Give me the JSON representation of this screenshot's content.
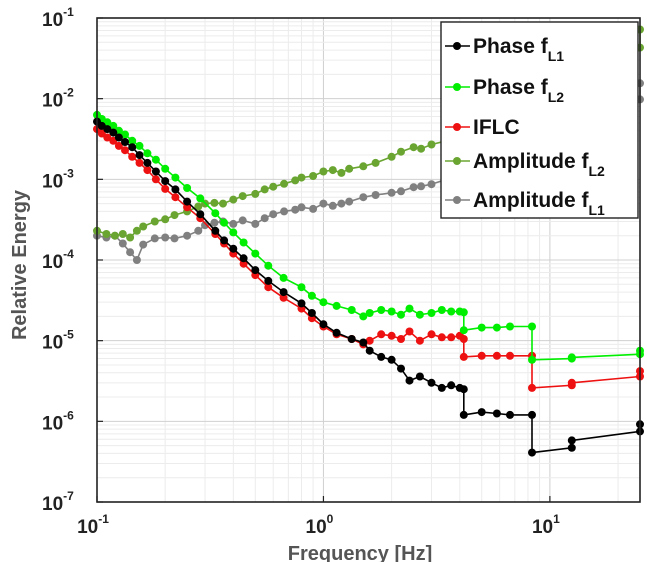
{
  "chart_data": {
    "type": "line",
    "xscale": "log",
    "yscale": "log",
    "xlim": [
      0.1,
      25
    ],
    "ylim": [
      1e-07,
      0.1
    ],
    "xlabel": "Frequency [Hz]",
    "ylabel": "Relative Energy",
    "grid": true,
    "legend_position": "top-right",
    "x_ticks": [
      {
        "base": "10",
        "exp": "-1",
        "value": 0.1
      },
      {
        "base": "10",
        "exp": "0",
        "value": 1
      },
      {
        "base": "10",
        "exp": "1",
        "value": 10
      }
    ],
    "y_ticks": [
      {
        "base": "10",
        "exp": "-7",
        "value": 1e-07
      },
      {
        "base": "10",
        "exp": "-6",
        "value": 1e-06
      },
      {
        "base": "10",
        "exp": "-5",
        "value": 1e-05
      },
      {
        "base": "10",
        "exp": "-4",
        "value": 0.0001
      },
      {
        "base": "10",
        "exp": "-3",
        "value": 0.001
      },
      {
        "base": "10",
        "exp": "-2",
        "value": 0.01
      },
      {
        "base": "10",
        "exp": "-1",
        "value": 0.1
      }
    ],
    "series": [
      {
        "name": "Phase f",
        "sub": "L1",
        "color": "#000000",
        "x": [
          0.1,
          0.105,
          0.111,
          0.118,
          0.125,
          0.133,
          0.143,
          0.154,
          0.167,
          0.182,
          0.2,
          0.222,
          0.25,
          0.286,
          0.333,
          0.364,
          0.4,
          0.444,
          0.5,
          0.571,
          0.667,
          0.8,
          0.889,
          1.0,
          1.143,
          1.333,
          1.5,
          1.6,
          1.8,
          2.0,
          2.2,
          2.4,
          2.667,
          3.0,
          3.333,
          3.667,
          4.0,
          4.167,
          4.167,
          5.0,
          5.833,
          6.667,
          8.333,
          8.333,
          12.5,
          12.5,
          25,
          25
        ],
        "y": [
          0.0052,
          0.0046,
          0.0042,
          0.0038,
          0.0033,
          0.0029,
          0.0025,
          0.002,
          0.0016,
          0.00125,
          0.00095,
          0.00075,
          0.00053,
          0.00037,
          0.00023,
          0.000175,
          0.000138,
          0.000105,
          7.5e-05,
          5.5e-05,
          4e-05,
          2.9e-05,
          2.2e-05,
          1.6e-05,
          1.25e-05,
          1.05e-05,
          9.5e-06,
          7.5e-06,
          6.3e-06,
          5.8e-06,
          4.5e-06,
          3.2e-06,
          3.6e-06,
          3e-06,
          2.6e-06,
          2.8e-06,
          2.6e-06,
          2.5e-06,
          1.2e-06,
          1.3e-06,
          1.25e-06,
          1.2e-06,
          1.2e-06,
          4.1e-07,
          4.7e-07,
          5.8e-07,
          7.5e-07,
          9.2e-07
        ]
      },
      {
        "name": "Phase f",
        "sub": "L2",
        "color": "#00ee00",
        "x": [
          0.1,
          0.105,
          0.111,
          0.118,
          0.125,
          0.133,
          0.143,
          0.154,
          0.167,
          0.182,
          0.2,
          0.222,
          0.25,
          0.286,
          0.333,
          0.364,
          0.4,
          0.444,
          0.5,
          0.571,
          0.667,
          0.8,
          0.889,
          1.0,
          1.143,
          1.333,
          1.5,
          1.6,
          1.8,
          2.0,
          2.2,
          2.4,
          2.667,
          3.0,
          3.333,
          3.667,
          4.0,
          4.167,
          4.167,
          5.0,
          5.833,
          6.667,
          8.333,
          8.333,
          12.5,
          12.5,
          25,
          25
        ],
        "y": [
          0.0063,
          0.0056,
          0.0051,
          0.0046,
          0.004,
          0.0036,
          0.003,
          0.0026,
          0.0021,
          0.00175,
          0.00135,
          0.00105,
          0.00078,
          0.00058,
          0.00038,
          0.00029,
          0.00022,
          0.000165,
          0.00012,
          8.5e-05,
          6e-05,
          4.6e-05,
          3.6e-05,
          3e-05,
          2.7e-05,
          2.4e-05,
          2e-05,
          2.2e-05,
          2.4e-05,
          2.3e-05,
          2.1e-05,
          2.5e-05,
          2.1e-05,
          2.2e-05,
          2.4e-05,
          2.3e-05,
          2.3e-05,
          2.25e-05,
          1.35e-05,
          1.45e-05,
          1.45e-05,
          1.5e-05,
          1.5e-05,
          5.8e-06,
          6e-06,
          6.2e-06,
          6.8e-06,
          7.5e-06
        ]
      },
      {
        "name": "IFLC",
        "sub": "",
        "color": "#ee1111",
        "x": [
          0.1,
          0.105,
          0.111,
          0.118,
          0.125,
          0.133,
          0.143,
          0.154,
          0.167,
          0.182,
          0.2,
          0.222,
          0.25,
          0.286,
          0.333,
          0.364,
          0.4,
          0.444,
          0.5,
          0.571,
          0.667,
          0.8,
          0.889,
          1.0,
          1.143,
          1.333,
          1.5,
          1.6,
          1.8,
          2.0,
          2.2,
          2.4,
          2.667,
          3.0,
          3.333,
          3.667,
          4.0,
          4.167,
          4.167,
          5.0,
          5.833,
          6.667,
          8.333,
          8.333,
          12.5,
          12.5,
          25,
          25
        ],
        "y": [
          0.0042,
          0.0037,
          0.0033,
          0.003,
          0.0026,
          0.0023,
          0.0019,
          0.0016,
          0.0013,
          0.001,
          0.00076,
          0.0006,
          0.00045,
          0.00033,
          0.00021,
          0.00016,
          0.00012,
          9e-05,
          6.5e-05,
          4.6e-05,
          3.4e-05,
          2.5e-05,
          1.9e-05,
          1.5e-05,
          1.2e-05,
          1.05e-05,
          9e-06,
          1e-05,
          1.2e-05,
          1.15e-05,
          1.05e-05,
          1.3e-05,
          1e-05,
          1.2e-05,
          1.1e-05,
          1.1e-05,
          1.15e-05,
          1.05e-05,
          6.3e-06,
          6.5e-06,
          6.5e-06,
          6.5e-06,
          6.5e-06,
          2.6e-06,
          2.8e-06,
          3e-06,
          3.6e-06,
          4.2e-06
        ]
      },
      {
        "name": "Amplitude f",
        "sub": "L2",
        "color": "#6aa532",
        "x": [
          0.1,
          0.11,
          0.12,
          0.13,
          0.14,
          0.15,
          0.16,
          0.18,
          0.2,
          0.22,
          0.25,
          0.28,
          0.3,
          0.33,
          0.36,
          0.4,
          0.44,
          0.5,
          0.55,
          0.6,
          0.67,
          0.75,
          0.8,
          0.9,
          1.0,
          1.1,
          1.2,
          1.3,
          1.5,
          1.7,
          2.0,
          2.2,
          2.5,
          2.7,
          3.0,
          3.5,
          4.0,
          25,
          25
        ],
        "y": [
          0.00023,
          0.00021,
          0.0002,
          0.00021,
          0.00019,
          0.00023,
          0.00026,
          0.0003,
          0.00032,
          0.00036,
          0.0004,
          0.00046,
          0.0005,
          0.00051,
          0.0005,
          0.00056,
          0.00062,
          0.00066,
          0.00075,
          0.00081,
          0.00088,
          0.00097,
          0.00105,
          0.0011,
          0.00125,
          0.0013,
          0.0012,
          0.00135,
          0.00145,
          0.0016,
          0.0019,
          0.0022,
          0.0025,
          0.0024,
          0.0027,
          0.003,
          0.0035,
          0.043,
          0.072
        ]
      },
      {
        "name": "Amplitude f",
        "sub": "L1",
        "color": "#808080",
        "x": [
          0.1,
          0.11,
          0.12,
          0.13,
          0.14,
          0.15,
          0.16,
          0.18,
          0.2,
          0.22,
          0.25,
          0.28,
          0.3,
          0.33,
          0.36,
          0.4,
          0.44,
          0.5,
          0.55,
          0.6,
          0.67,
          0.75,
          0.8,
          0.9,
          1.0,
          1.1,
          1.2,
          1.3,
          1.5,
          1.7,
          2.0,
          2.2,
          2.5,
          2.7,
          3.0,
          3.5,
          4.0,
          25,
          25
        ],
        "y": [
          0.0002,
          0.00019,
          0.0002,
          0.00016,
          0.000125,
          0.0001,
          0.000155,
          0.000185,
          0.00019,
          0.000185,
          0.0002,
          0.00023,
          0.00027,
          0.00029,
          0.0003,
          0.00028,
          0.00031,
          0.00028,
          0.00033,
          0.00037,
          0.0004,
          0.00042,
          0.00045,
          0.00043,
          0.0005,
          0.00047,
          0.0005,
          0.00053,
          0.0006,
          0.00064,
          0.00068,
          0.00071,
          0.0008,
          0.00082,
          0.00087,
          0.001,
          0.0011,
          0.0098,
          0.0155
        ]
      }
    ]
  }
}
